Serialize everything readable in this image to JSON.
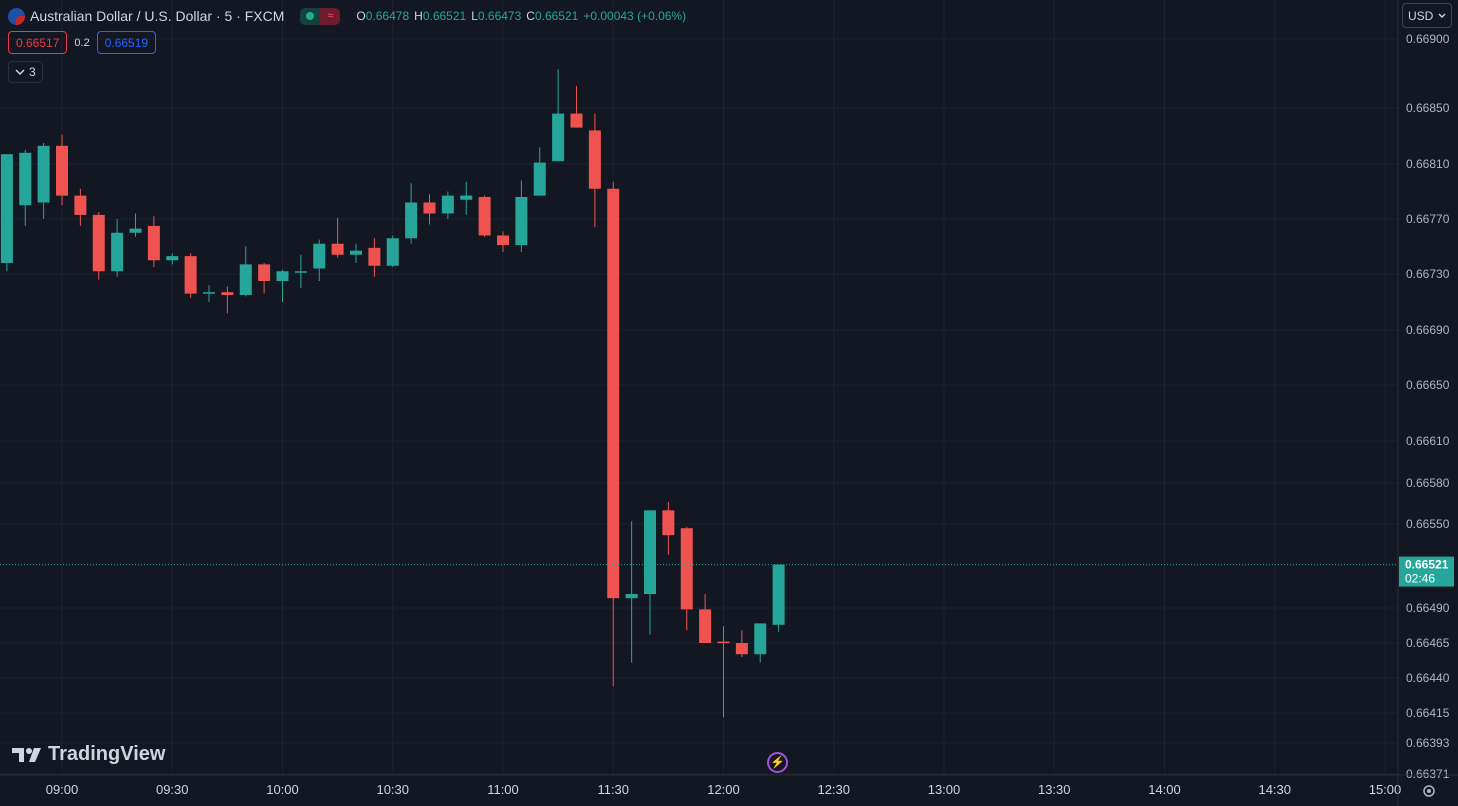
{
  "header": {
    "symbol_title": "Australian Dollar / U.S. Dollar · 5 · FXCM",
    "ohlc": [
      {
        "key": "O",
        "value": "0.66478"
      },
      {
        "key": "H",
        "value": "0.66521"
      },
      {
        "key": "L",
        "value": "0.66473"
      },
      {
        "key": "C",
        "value": "0.66521"
      }
    ],
    "change": "+0.00043 (+0.06%)",
    "status_icons": [
      "market-open-icon",
      "alert-icon"
    ]
  },
  "quote": {
    "sell": "0.66517",
    "spread": "0.2",
    "buy": "0.66519"
  },
  "indicators_toggle": {
    "label": "3",
    "icon": "chevron-down-icon"
  },
  "currency_selector": {
    "label": "USD",
    "icon": "chevron-down-icon"
  },
  "branding": {
    "logo_text": "TradingView",
    "icon": "tradingview-logo-icon"
  },
  "footer_icons": [
    "lightning-icon",
    "gear-icon"
  ],
  "colors": {
    "background": "#131722",
    "grid": "#1e222d",
    "up": "#26a69a",
    "down": "#ef5350",
    "text": "#d1d4dc",
    "last_price_label": "#26a69a"
  },
  "chart_data": {
    "type": "candlestick",
    "interval": "5m",
    "y_ticks": [
      "0.66900",
      "0.66850",
      "0.66810",
      "0.66770",
      "0.66730",
      "0.66690",
      "0.66650",
      "0.66610",
      "0.66580",
      "0.66550",
      "0.66490",
      "0.66465",
      "0.66440",
      "0.66415",
      "0.66393",
      "0.66371"
    ],
    "x_ticks": [
      "09:00",
      "09:30",
      "10:00",
      "10:30",
      "11:00",
      "11:30",
      "12:00",
      "12:30",
      "13:00",
      "13:30",
      "14:00",
      "14:30",
      "15:00"
    ],
    "last_price": {
      "value": "0.66521",
      "countdown": "02:46"
    },
    "candles": [
      {
        "t": "08:45",
        "o": 0.66738,
        "h": 0.66816,
        "l": 0.66732,
        "c": 0.66817
      },
      {
        "t": "08:50",
        "o": 0.6678,
        "h": 0.6682,
        "l": 0.66765,
        "c": 0.66818
      },
      {
        "t": "08:55",
        "o": 0.66782,
        "h": 0.66825,
        "l": 0.6677,
        "c": 0.66823
      },
      {
        "t": "09:00",
        "o": 0.66823,
        "h": 0.66831,
        "l": 0.6678,
        "c": 0.66787
      },
      {
        "t": "09:05",
        "o": 0.66787,
        "h": 0.66792,
        "l": 0.66765,
        "c": 0.66773
      },
      {
        "t": "09:10",
        "o": 0.66773,
        "h": 0.66775,
        "l": 0.66726,
        "c": 0.66732
      },
      {
        "t": "09:15",
        "o": 0.66732,
        "h": 0.6677,
        "l": 0.66728,
        "c": 0.6676
      },
      {
        "t": "09:20",
        "o": 0.6676,
        "h": 0.66774,
        "l": 0.66757,
        "c": 0.66763
      },
      {
        "t": "09:25",
        "o": 0.66765,
        "h": 0.66772,
        "l": 0.66735,
        "c": 0.6674
      },
      {
        "t": "09:30",
        "o": 0.6674,
        "h": 0.66745,
        "l": 0.66737,
        "c": 0.66743
      },
      {
        "t": "09:35",
        "o": 0.66743,
        "h": 0.66745,
        "l": 0.66713,
        "c": 0.66716
      },
      {
        "t": "09:40",
        "o": 0.66716,
        "h": 0.66722,
        "l": 0.6671,
        "c": 0.66717
      },
      {
        "t": "09:45",
        "o": 0.66717,
        "h": 0.66721,
        "l": 0.66702,
        "c": 0.66715
      },
      {
        "t": "09:50",
        "o": 0.66715,
        "h": 0.6675,
        "l": 0.66714,
        "c": 0.66737
      },
      {
        "t": "09:55",
        "o": 0.66737,
        "h": 0.66738,
        "l": 0.66716,
        "c": 0.66725
      },
      {
        "t": "10:00",
        "o": 0.66725,
        "h": 0.66733,
        "l": 0.6671,
        "c": 0.66732
      },
      {
        "t": "10:05",
        "o": 0.66732,
        "h": 0.66744,
        "l": 0.6672,
        "c": 0.66732
      },
      {
        "t": "10:10",
        "o": 0.66734,
        "h": 0.66755,
        "l": 0.66725,
        "c": 0.66752
      },
      {
        "t": "10:15",
        "o": 0.66752,
        "h": 0.66771,
        "l": 0.66742,
        "c": 0.66744
      },
      {
        "t": "10:20",
        "o": 0.66744,
        "h": 0.66752,
        "l": 0.66738,
        "c": 0.66747
      },
      {
        "t": "10:25",
        "o": 0.66749,
        "h": 0.66756,
        "l": 0.66728,
        "c": 0.66736
      },
      {
        "t": "10:30",
        "o": 0.66736,
        "h": 0.66758,
        "l": 0.66735,
        "c": 0.66756
      },
      {
        "t": "10:35",
        "o": 0.66756,
        "h": 0.66796,
        "l": 0.66752,
        "c": 0.66782
      },
      {
        "t": "10:40",
        "o": 0.66782,
        "h": 0.66788,
        "l": 0.66766,
        "c": 0.66774
      },
      {
        "t": "10:45",
        "o": 0.66774,
        "h": 0.6679,
        "l": 0.6677,
        "c": 0.66787
      },
      {
        "t": "10:50",
        "o": 0.66784,
        "h": 0.66797,
        "l": 0.66773,
        "c": 0.66787
      },
      {
        "t": "10:55",
        "o": 0.66786,
        "h": 0.66787,
        "l": 0.66757,
        "c": 0.66758
      },
      {
        "t": "11:00",
        "o": 0.66758,
        "h": 0.66761,
        "l": 0.66746,
        "c": 0.66751
      },
      {
        "t": "11:05",
        "o": 0.66751,
        "h": 0.66798,
        "l": 0.66746,
        "c": 0.66786
      },
      {
        "t": "11:10",
        "o": 0.66787,
        "h": 0.66822,
        "l": 0.66787,
        "c": 0.66811
      },
      {
        "t": "11:15",
        "o": 0.66812,
        "h": 0.66878,
        "l": 0.66812,
        "c": 0.66846
      },
      {
        "t": "11:20",
        "o": 0.66846,
        "h": 0.66866,
        "l": 0.66836,
        "c": 0.66836
      },
      {
        "t": "11:25",
        "o": 0.66834,
        "h": 0.66846,
        "l": 0.66764,
        "c": 0.66792
      },
      {
        "t": "11:30",
        "o": 0.66792,
        "h": 0.66797,
        "l": 0.66434,
        "c": 0.66497
      },
      {
        "t": "11:35",
        "o": 0.66497,
        "h": 0.66552,
        "l": 0.66451,
        "c": 0.665
      },
      {
        "t": "11:40",
        "o": 0.665,
        "h": 0.6656,
        "l": 0.66471,
        "c": 0.6656
      },
      {
        "t": "11:45",
        "o": 0.6656,
        "h": 0.66566,
        "l": 0.66528,
        "c": 0.66542
      },
      {
        "t": "11:50",
        "o": 0.66547,
        "h": 0.66548,
        "l": 0.66474,
        "c": 0.66489
      },
      {
        "t": "11:55",
        "o": 0.66489,
        "h": 0.665,
        "l": 0.66465,
        "c": 0.66465
      },
      {
        "t": "12:00",
        "o": 0.66466,
        "h": 0.66477,
        "l": 0.66412,
        "c": 0.66465
      },
      {
        "t": "12:05",
        "o": 0.66465,
        "h": 0.66474,
        "l": 0.66455,
        "c": 0.66457
      },
      {
        "t": "12:10",
        "o": 0.66457,
        "h": 0.66478,
        "l": 0.66451,
        "c": 0.66479
      },
      {
        "t": "12:15",
        "o": 0.66478,
        "h": 0.66521,
        "l": 0.66473,
        "c": 0.66521
      }
    ]
  }
}
